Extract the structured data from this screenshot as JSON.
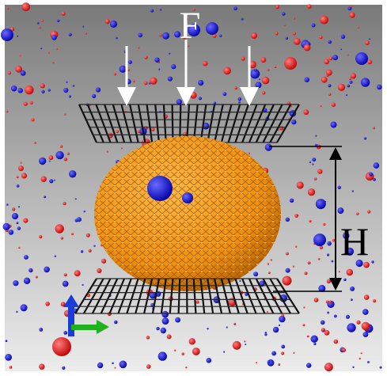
{
  "labels": {
    "force": "F",
    "height": "H"
  }
}
